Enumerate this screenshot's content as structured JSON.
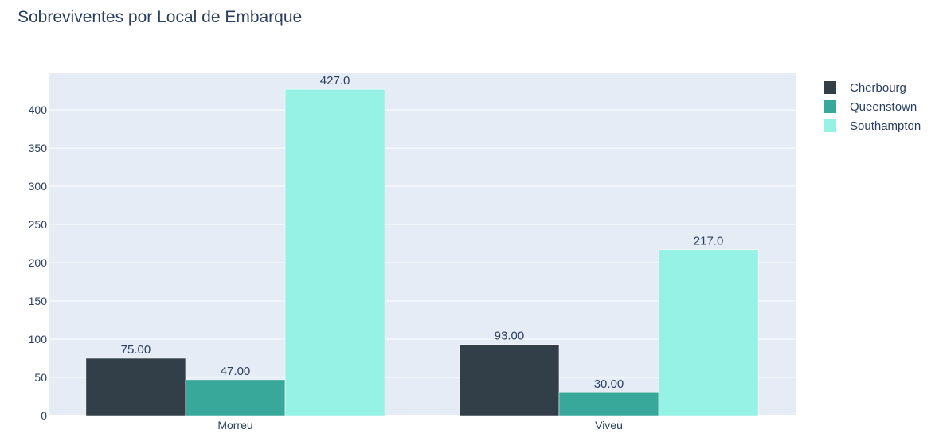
{
  "chart_data": {
    "type": "bar",
    "title": "Sobreviventes por Local de Embarque",
    "categories": [
      "Morreu",
      "Viveu"
    ],
    "series": [
      {
        "name": "Cherbourg",
        "color": "#333f48",
        "values": [
          75,
          93
        ],
        "labels": [
          "75.00",
          "93.00"
        ]
      },
      {
        "name": "Queenstown",
        "color": "#38a89b",
        "values": [
          47,
          30
        ],
        "labels": [
          "47.00",
          "30.00"
        ]
      },
      {
        "name": "Southampton",
        "color": "#96f2e5",
        "values": [
          427,
          217
        ],
        "labels": [
          "427.0",
          "217.0"
        ]
      }
    ],
    "yticks": [
      0,
      50,
      100,
      150,
      200,
      250,
      300,
      350,
      400
    ],
    "ylim": [
      0,
      448
    ],
    "grid": true,
    "legend_position": "top-right",
    "plot_bgcolor": "#e5ecf6"
  }
}
